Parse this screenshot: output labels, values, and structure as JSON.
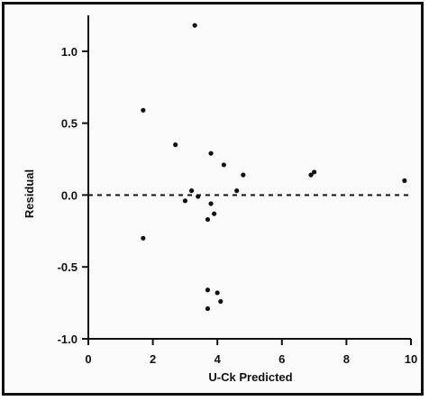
{
  "chart_data": {
    "type": "scatter",
    "title": "",
    "xlabel": "U-Ck  Predicted",
    "ylabel": "Residual",
    "xlim": [
      0,
      10
    ],
    "ylim": [
      -1.0,
      1.25
    ],
    "x_ticks": [
      0,
      2,
      4,
      6,
      8,
      10
    ],
    "x_tick_labels": [
      "0",
      "2",
      "4",
      "6",
      "8",
      "10"
    ],
    "y_ticks": [
      1.0,
      0.5,
      0.0,
      -0.5,
      -1.0
    ],
    "y_tick_labels": [
      "1.0",
      "0.5",
      "0.0",
      "-0.5",
      "-1.0"
    ],
    "reference_line": {
      "y": 0.0,
      "style": "dashed"
    },
    "grid": false,
    "legend": "none",
    "points": [
      {
        "x": 1.7,
        "y": 0.59
      },
      {
        "x": 1.7,
        "y": -0.3
      },
      {
        "x": 2.7,
        "y": 0.35
      },
      {
        "x": 3.0,
        "y": -0.04
      },
      {
        "x": 3.2,
        "y": 0.03
      },
      {
        "x": 3.3,
        "y": 1.18
      },
      {
        "x": 3.4,
        "y": -0.01
      },
      {
        "x": 3.7,
        "y": -0.17
      },
      {
        "x": 3.7,
        "y": -0.66
      },
      {
        "x": 3.7,
        "y": -0.79
      },
      {
        "x": 3.8,
        "y": 0.29
      },
      {
        "x": 3.8,
        "y": -0.06
      },
      {
        "x": 3.9,
        "y": -0.13
      },
      {
        "x": 4.0,
        "y": -0.68
      },
      {
        "x": 4.1,
        "y": -0.74
      },
      {
        "x": 4.2,
        "y": 0.21
      },
      {
        "x": 4.6,
        "y": 0.03
      },
      {
        "x": 4.8,
        "y": 0.14
      },
      {
        "x": 6.9,
        "y": 0.14
      },
      {
        "x": 7.0,
        "y": 0.16
      },
      {
        "x": 9.8,
        "y": 0.1
      }
    ]
  }
}
